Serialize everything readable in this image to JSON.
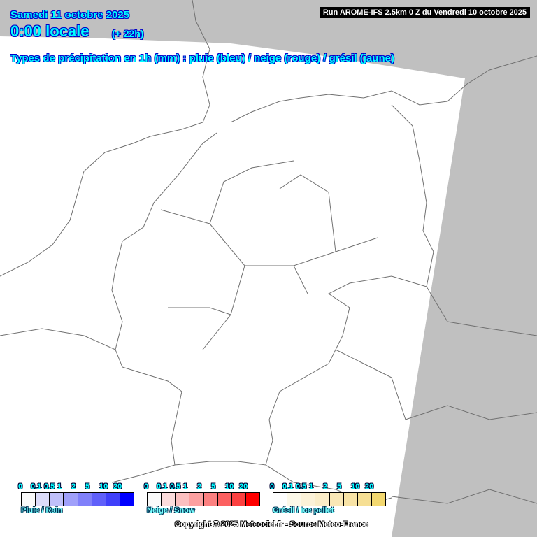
{
  "header": {
    "date": "Samedi 11 octobre 2025",
    "time": "0:00 locale",
    "lead": "(+ 22h)",
    "subtitle": "Types de précipitation en 1h (mm) : pluie (bleu) / neige (rouge) / grésil (jaune)",
    "run": "Run AROME-IFS 2.5km 0 Z du Vendredi 10 octobre 2025"
  },
  "legends": [
    {
      "name": "Pluie / Rain",
      "ticks": [
        "0",
        "0.1",
        "0.5",
        "1",
        "2",
        "5",
        "10",
        "20"
      ],
      "colors": [
        "#fafafa",
        "#dcdcfa",
        "#c0c0fa",
        "#a0a0fa",
        "#8080fa",
        "#6060fa",
        "#4040fa",
        "#0000ff"
      ]
    },
    {
      "name": "Neige / Snow",
      "ticks": [
        "0",
        "0.1",
        "0.5",
        "1",
        "2",
        "5",
        "10",
        "20"
      ],
      "colors": [
        "#fafafa",
        "#fcdcdc",
        "#fcc0c0",
        "#fca0a0",
        "#fc8080",
        "#fc6060",
        "#fc4040",
        "#ff0000"
      ]
    },
    {
      "name": "Grésil / Ice pellet",
      "ticks": [
        "0",
        "0.1",
        "0.5",
        "1",
        "2",
        "5",
        "10",
        "20"
      ],
      "colors": [
        "#fefefe",
        "#fcf8e8",
        "#fcf2d8",
        "#fbedc8",
        "#f9e7b6",
        "#f8e3a6",
        "#f6df94",
        "#f3d870"
      ]
    }
  ],
  "copyright": "Copyright © 2025 Meteociel.fr - Source Meteo-France",
  "colors": {
    "background": "#c0c0c0",
    "domain": "#ffffff",
    "title_text": "#00ffff",
    "borders": "#707070"
  }
}
